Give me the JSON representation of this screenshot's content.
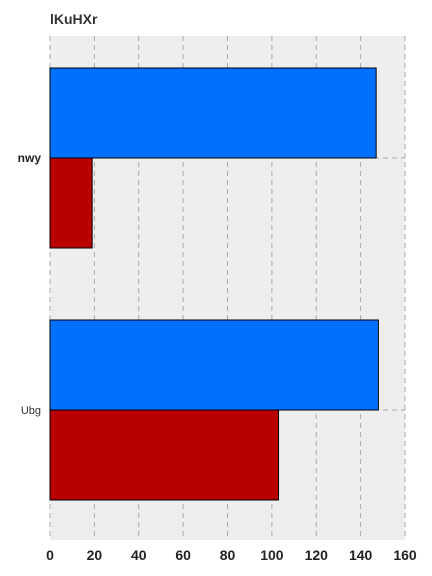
{
  "chart_data": {
    "type": "bar",
    "orientation": "horizontal",
    "title": "lKuHXr",
    "categories": [
      "nwy",
      "Ubg"
    ],
    "category_label_bold": [
      true,
      false
    ],
    "series": [
      {
        "values": [
          147,
          148
        ],
        "color": "#0070ff"
      },
      {
        "values": [
          19,
          103
        ],
        "color": "#b90000"
      }
    ],
    "xlim": [
      0,
      160
    ],
    "xticks": [
      0,
      20,
      40,
      60,
      80,
      100,
      120,
      140,
      160
    ],
    "xlabel": "",
    "ylabel": "",
    "grid": true,
    "plot_background": "#eeeeee"
  }
}
